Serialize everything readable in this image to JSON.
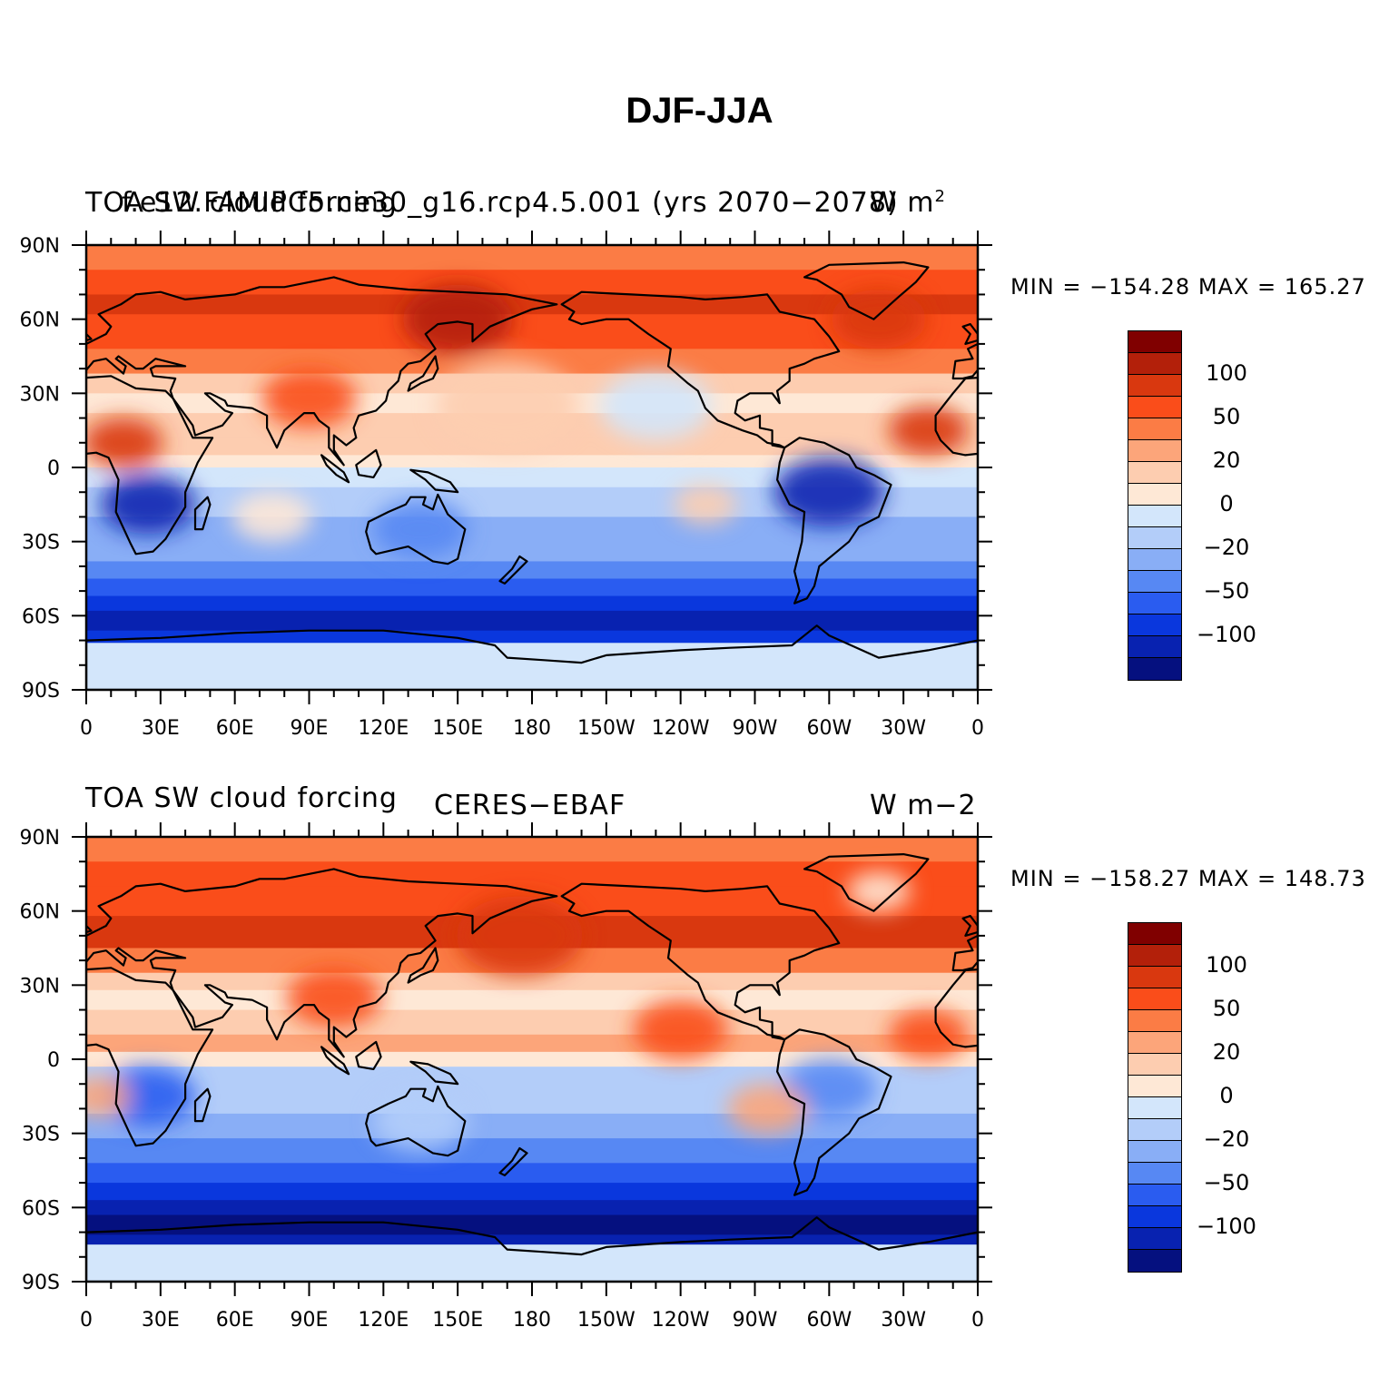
{
  "title": "DJF-JJA",
  "x_tick_labels": [
    "0",
    "30E",
    "60E",
    "90E",
    "120E",
    "150E",
    "180",
    "150W",
    "120W",
    "90W",
    "60W",
    "30W",
    "0"
  ],
  "y_tick_labels": [
    "90N",
    "60N",
    "30N",
    "0",
    "30S",
    "60S",
    "90S"
  ],
  "colorbar": {
    "colors": [
      "#800000",
      "#b3200a",
      "#d9380f",
      "#fa4d1a",
      "#fb7c45",
      "#fca57a",
      "#fdcdb0",
      "#fee8d6",
      "#d3e6fb",
      "#b3cdf9",
      "#89aef6",
      "#5788f3",
      "#2a5cf0",
      "#0a37dd",
      "#0822b0",
      "#05107f"
    ],
    "labels": [
      "100",
      "50",
      "20",
      "0",
      "−20",
      "−50",
      "−100"
    ]
  },
  "panels": [
    {
      "left_title": "TOA SW cloud forcing",
      "center_title": "f.e12.FAMIPC5.ne30_g16.rcp4.5.001 (yrs 2070−2078)",
      "right_title": "W m",
      "right_title_sup": "2",
      "stats": "MIN = −154.28  MAX = 165.27"
    },
    {
      "left_title": "TOA SW cloud forcing",
      "center_title": "CERES−EBAF",
      "right_title": "W m−2",
      "right_title_sup": "",
      "stats": "MIN = −158.27  MAX = 148.73"
    }
  ],
  "chart_data": {
    "type": "heatmap",
    "title": "DJF-JJA",
    "x_ticks": [
      "0",
      "30E",
      "60E",
      "90E",
      "120E",
      "150E",
      "180",
      "150W",
      "120W",
      "90W",
      "60W",
      "30W",
      "0"
    ],
    "y_ticks": [
      "90N",
      "60N",
      "30N",
      "0",
      "30S",
      "60S",
      "90S"
    ],
    "colorbar_labels": [
      100,
      50,
      20,
      0,
      -20,
      -50,
      -100
    ],
    "maps": [
      {
        "name": "f.e12.FAMIPC5.ne30_g16.rcp4.5.001 (yrs 2070−2078)",
        "variable": "TOA SW cloud forcing",
        "min": -154.28,
        "max": 165.27
      },
      {
        "name": "CERES−EBAF",
        "variable": "TOA SW cloud forcing",
        "min": -158.27,
        "max": 148.73
      }
    ]
  }
}
